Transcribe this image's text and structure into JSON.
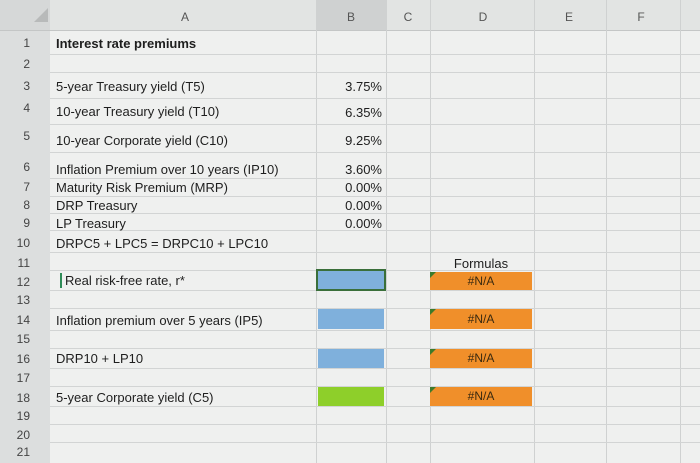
{
  "columns": [
    "A",
    "B",
    "C",
    "D",
    "E",
    "F"
  ],
  "row_numbers": [
    "1",
    "2",
    "3",
    "4",
    "5",
    "6",
    "7",
    "8",
    "9",
    "10",
    "11",
    "12",
    "13",
    "14",
    "15",
    "16",
    "17",
    "18",
    "19",
    "20",
    "21"
  ],
  "rows": {
    "r1": "Interest rate premiums",
    "r3": "5-year Treasury yield (T5)",
    "r4": "10-year Treasury yield (T10)",
    "r5": "10-year Corporate yield (C10)",
    "r6": "Inflation Premium over 10 years (IP10)",
    "r7": "Maturity Risk Premium (MRP)",
    "r8": "DRP Treasury",
    "r9": "LP Treasury",
    "r10": "DRPC5 + LPC5 = DRPC10 + LPC10",
    "r12": "Real risk-free rate, r*",
    "r14": "Inflation premium over 5 years (IP5)",
    "r16": "DRP10 + LP10",
    "r18": "5-year Corporate yield (C5)"
  },
  "values": {
    "r3": "3.75%",
    "r4": "6.35%",
    "r5": "9.25%",
    "r6": "3.60%",
    "r7": "0.00%",
    "r8": "0.00%",
    "r9": "0.00%"
  },
  "formulas": {
    "header": "Formulas",
    "r12": "#N/A",
    "r14": "#N/A",
    "r16": "#N/A",
    "r18": "#N/A"
  },
  "colors": {
    "input_blue": "#7fb0dc",
    "output_green": "#8ecf2a",
    "formula_orange": "#f08f2a"
  }
}
